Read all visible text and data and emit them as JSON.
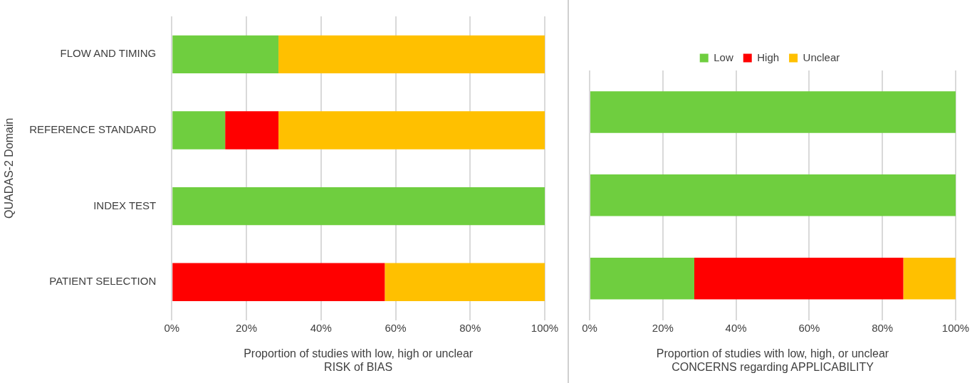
{
  "chart_data": [
    {
      "type": "bar",
      "orientation": "horizontal",
      "stacked": true,
      "categories": [
        "FLOW AND TIMING",
        "REFERENCE STANDARD",
        "INDEX TEST",
        "PATIENT SELECTION"
      ],
      "ylabel": "QUADAS-2 Domain",
      "xlabel": "Proportion of studies with low, high or unclear\nRISK of BIAS",
      "series": [
        {
          "color": "#6fce3f",
          "values": [
            28.6,
            14.3,
            100,
            0
          ]
        },
        {
          "color": "#ff0000",
          "values": [
            0,
            14.3,
            0,
            57.1
          ]
        },
        {
          "color": "#ffc000",
          "values": [
            71.4,
            71.4,
            0,
            42.9
          ]
        }
      ],
      "xlim": [
        0,
        100
      ],
      "xticks": [
        {
          "value": 0,
          "label": "0%"
        },
        {
          "value": 20,
          "label": "20%"
        },
        {
          "value": 40,
          "label": "40%"
        },
        {
          "value": 60,
          "label": "60%"
        },
        {
          "value": 80,
          "label": "80%"
        },
        {
          "value": 100,
          "label": "100%"
        }
      ],
      "grid": "x",
      "legend": false
    },
    {
      "type": "bar",
      "orientation": "horizontal",
      "stacked": true,
      "categories": [
        null,
        null,
        null
      ],
      "tick_labels": "x",
      "xlabel": "Proportion of studies with low, high, or unclear\nCONCERNS regarding APPLICABILITY",
      "series": [
        {
          "name": "Low",
          "color": "#6fce3f",
          "values": [
            100,
            100,
            28.6
          ]
        },
        {
          "name": "High",
          "color": "#ff0000",
          "values": [
            0,
            0,
            57.1
          ]
        },
        {
          "name": "Unclear",
          "color": "#ffc000",
          "values": [
            0,
            0,
            14.3
          ]
        }
      ],
      "xlim": [
        0,
        100
      ],
      "xticks": [
        {
          "value": 0,
          "label": "0%"
        },
        {
          "value": 20,
          "label": "20%"
        },
        {
          "value": 40,
          "label": "40%"
        },
        {
          "value": 60,
          "label": "60%"
        },
        {
          "value": 80,
          "label": "80%"
        },
        {
          "value": 100,
          "label": "100%"
        }
      ],
      "grid": "x",
      "legend": "top"
    }
  ]
}
